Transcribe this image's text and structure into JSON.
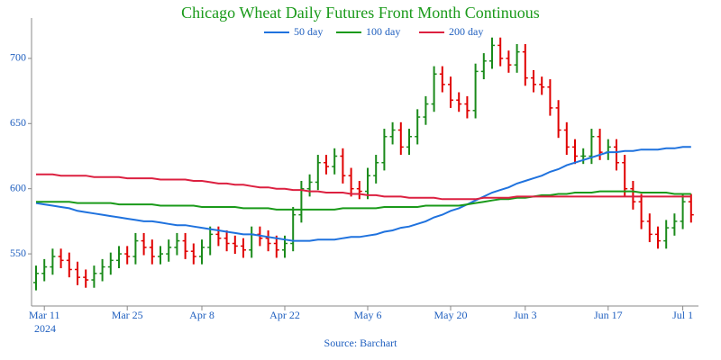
{
  "chart_data": {
    "type": "ohlc",
    "title": "Chicago Wheat Daily Futures Front Month Continuous",
    "source": "Source: Barchart",
    "x_year": "2024",
    "x": [
      "2024-03-08",
      "2024-03-11",
      "2024-03-12",
      "2024-03-13",
      "2024-03-14",
      "2024-03-15",
      "2024-03-18",
      "2024-03-19",
      "2024-03-20",
      "2024-03-21",
      "2024-03-22",
      "2024-03-25",
      "2024-03-26",
      "2024-03-27",
      "2024-03-28",
      "2024-04-01",
      "2024-04-02",
      "2024-04-03",
      "2024-04-04",
      "2024-04-05",
      "2024-04-08",
      "2024-04-09",
      "2024-04-10",
      "2024-04-11",
      "2024-04-12",
      "2024-04-15",
      "2024-04-16",
      "2024-04-17",
      "2024-04-18",
      "2024-04-19",
      "2024-04-22",
      "2024-04-23",
      "2024-04-24",
      "2024-04-25",
      "2024-04-26",
      "2024-04-29",
      "2024-04-30",
      "2024-05-01",
      "2024-05-02",
      "2024-05-03",
      "2024-05-06",
      "2024-05-07",
      "2024-05-08",
      "2024-05-09",
      "2024-05-10",
      "2024-05-13",
      "2024-05-14",
      "2024-05-15",
      "2024-05-16",
      "2024-05-17",
      "2024-05-20",
      "2024-05-21",
      "2024-05-22",
      "2024-05-23",
      "2024-05-24",
      "2024-05-28",
      "2024-05-29",
      "2024-05-30",
      "2024-05-31",
      "2024-06-03",
      "2024-06-04",
      "2024-06-05",
      "2024-06-06",
      "2024-06-07",
      "2024-06-10",
      "2024-06-11",
      "2024-06-12",
      "2024-06-13",
      "2024-06-14",
      "2024-06-17",
      "2024-06-18",
      "2024-06-20",
      "2024-06-21",
      "2024-06-24",
      "2024-06-25",
      "2024-06-26",
      "2024-06-27",
      "2024-06-28",
      "2024-07-01",
      "2024-07-02"
    ],
    "open": [
      528,
      535,
      540,
      548,
      545,
      538,
      532,
      530,
      535,
      540,
      545,
      550,
      548,
      560,
      555,
      548,
      550,
      555,
      560,
      552,
      548,
      555,
      565,
      562,
      558,
      556,
      553,
      565,
      562,
      558,
      553,
      558,
      580,
      600,
      605,
      620,
      617,
      625,
      610,
      600,
      598,
      610,
      620,
      640,
      645,
      632,
      640,
      655,
      665,
      688,
      680,
      668,
      665,
      660,
      690,
      698,
      710,
      700,
      695,
      705,
      685,
      680,
      678,
      662,
      645,
      632,
      625,
      625,
      640,
      628,
      632,
      620,
      600,
      590,
      575,
      565,
      560,
      570,
      575,
      590
    ],
    "high": [
      541,
      546,
      554,
      554,
      551,
      544,
      538,
      541,
      546,
      551,
      556,
      556,
      566,
      566,
      561,
      556,
      561,
      566,
      566,
      558,
      561,
      571,
      571,
      568,
      564,
      562,
      571,
      571,
      568,
      564,
      564,
      586,
      606,
      611,
      626,
      626,
      631,
      631,
      616,
      606,
      616,
      626,
      646,
      651,
      651,
      646,
      661,
      671,
      694,
      694,
      686,
      674,
      671,
      696,
      704,
      716,
      716,
      706,
      711,
      711,
      691,
      686,
      684,
      668,
      651,
      638,
      631,
      646,
      646,
      638,
      638,
      626,
      606,
      596,
      581,
      571,
      576,
      581,
      596,
      596
    ],
    "low": [
      522,
      529,
      534,
      539,
      532,
      526,
      524,
      524,
      529,
      534,
      539,
      542,
      542,
      549,
      542,
      542,
      544,
      549,
      546,
      542,
      542,
      549,
      556,
      552,
      550,
      547,
      547,
      556,
      552,
      547,
      547,
      552,
      574,
      594,
      599,
      611,
      611,
      604,
      594,
      592,
      592,
      604,
      614,
      634,
      626,
      626,
      634,
      649,
      659,
      674,
      662,
      659,
      654,
      654,
      684,
      692,
      694,
      689,
      689,
      679,
      674,
      672,
      656,
      639,
      626,
      619,
      619,
      619,
      622,
      622,
      614,
      594,
      584,
      569,
      559,
      554,
      554,
      564,
      569,
      574
    ],
    "close": [
      535,
      540,
      548,
      545,
      538,
      532,
      530,
      535,
      540,
      545,
      550,
      548,
      560,
      555,
      548,
      550,
      555,
      560,
      552,
      548,
      555,
      565,
      562,
      558,
      556,
      553,
      565,
      562,
      558,
      553,
      558,
      580,
      600,
      605,
      620,
      617,
      625,
      610,
      600,
      598,
      610,
      620,
      640,
      645,
      632,
      640,
      655,
      665,
      688,
      680,
      668,
      665,
      660,
      690,
      698,
      710,
      700,
      695,
      705,
      685,
      680,
      678,
      662,
      645,
      632,
      625,
      625,
      640,
      628,
      632,
      620,
      600,
      590,
      575,
      565,
      560,
      570,
      575,
      590,
      580
    ],
    "up_color": "#1a8a1a",
    "down_color": "#e00000",
    "series": [
      {
        "name": "50 day",
        "color": "#1f72de",
        "values": [
          589,
          588,
          587,
          586,
          585,
          583,
          582,
          581,
          580,
          579,
          578,
          577,
          576,
          575,
          575,
          574,
          573,
          572,
          572,
          571,
          570,
          569,
          568,
          567,
          566,
          565,
          565,
          564,
          563,
          562,
          561,
          560,
          560,
          560,
          561,
          561,
          561,
          562,
          563,
          563,
          564,
          565,
          567,
          568,
          570,
          571,
          573,
          575,
          578,
          580,
          583,
          585,
          588,
          591,
          594,
          597,
          599,
          601,
          604,
          606,
          608,
          610,
          613,
          615,
          618,
          620,
          622,
          624,
          626,
          628,
          628,
          629,
          629,
          630,
          630,
          630,
          631,
          631,
          632,
          632
        ]
      },
      {
        "name": "100 day",
        "color": "#1a9a1a",
        "values": [
          590,
          590,
          590,
          590,
          590,
          589,
          589,
          589,
          589,
          589,
          588,
          588,
          588,
          588,
          588,
          587,
          587,
          587,
          587,
          587,
          586,
          586,
          586,
          586,
          586,
          585,
          585,
          585,
          585,
          584,
          584,
          584,
          584,
          584,
          584,
          584,
          584,
          585,
          585,
          585,
          585,
          585,
          586,
          586,
          586,
          586,
          586,
          587,
          587,
          587,
          587,
          587,
          588,
          589,
          590,
          591,
          592,
          592,
          593,
          593,
          594,
          595,
          595,
          596,
          596,
          597,
          597,
          597,
          598,
          598,
          598,
          598,
          598,
          597,
          597,
          597,
          597,
          596,
          596,
          596
        ]
      },
      {
        "name": "200 day",
        "color": "#dc2040",
        "values": [
          611,
          611,
          611,
          610,
          610,
          610,
          610,
          609,
          609,
          609,
          609,
          608,
          608,
          608,
          608,
          607,
          607,
          607,
          607,
          606,
          606,
          605,
          604,
          604,
          603,
          603,
          602,
          601,
          601,
          600,
          600,
          599,
          599,
          598,
          598,
          597,
          597,
          597,
          596,
          596,
          595,
          595,
          594,
          594,
          594,
          593,
          593,
          593,
          593,
          592,
          592,
          592,
          592,
          592,
          593,
          593,
          593,
          593,
          594,
          594,
          594,
          594,
          594,
          594,
          594,
          594,
          594,
          594,
          594,
          594,
          594,
          594,
          594,
          594,
          594,
          594,
          594,
          594,
          594,
          594
        ]
      }
    ],
    "ylim": [
      510,
      731
    ],
    "yticks": [
      550,
      600,
      650,
      700
    ],
    "xticks": [
      {
        "value": "2024-03-11",
        "label": "Mar 11"
      },
      {
        "value": "2024-03-25",
        "label": "Mar 25"
      },
      {
        "value": "2024-04-08",
        "label": "Apr 8"
      },
      {
        "value": "2024-04-22",
        "label": "Apr 22"
      },
      {
        "value": "2024-05-06",
        "label": "May 6"
      },
      {
        "value": "2024-05-20",
        "label": "May 20"
      },
      {
        "value": "2024-06-03",
        "label": "Jun 3"
      },
      {
        "value": "2024-06-17",
        "label": "Jun 17"
      },
      {
        "value": "2024-07-01",
        "label": "Jul 1"
      }
    ]
  }
}
